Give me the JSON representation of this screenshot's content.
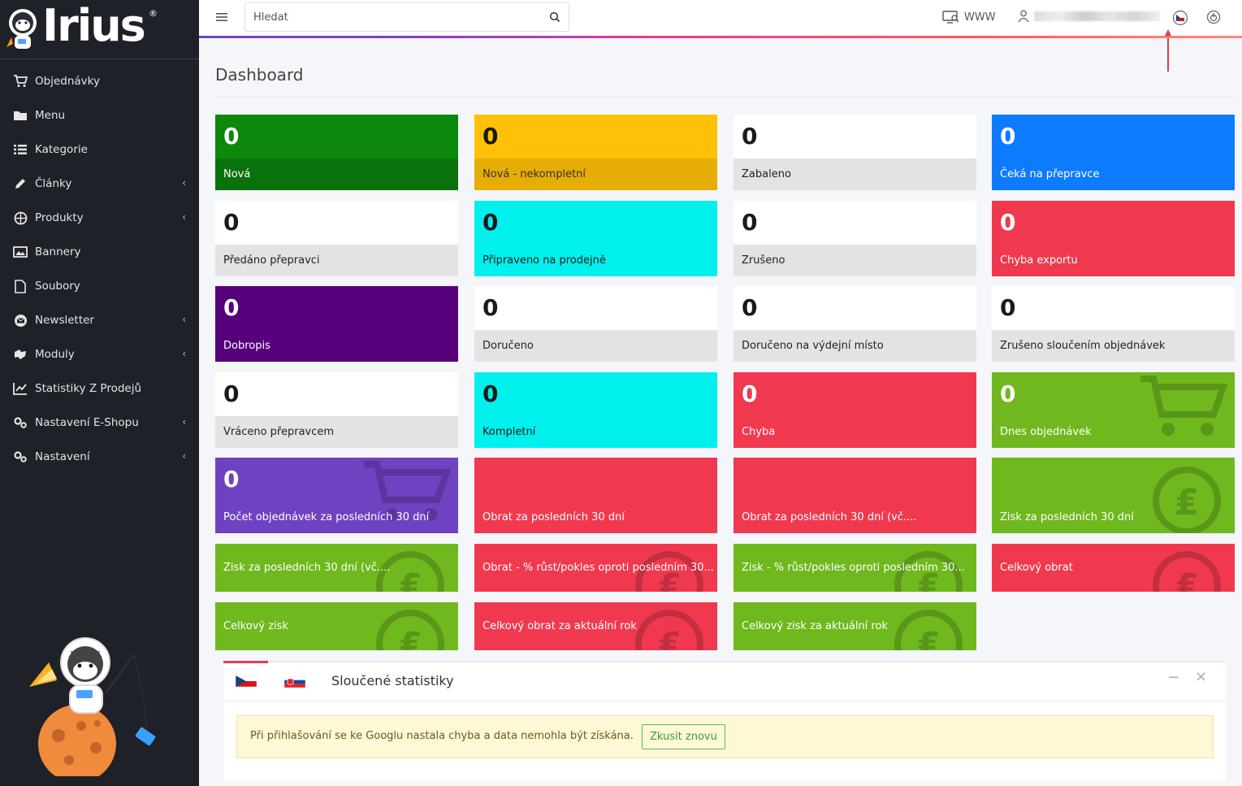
{
  "brand": {
    "logo_text": "Irius",
    "logo_mark": "®"
  },
  "sidebar": {
    "items": [
      {
        "label": "Objednávky",
        "icon": "cart-icon"
      },
      {
        "label": "Menu",
        "icon": "folder-icon"
      },
      {
        "label": "Kategorie",
        "icon": "list-icon"
      },
      {
        "label": "Články",
        "icon": "pencil-icon"
      },
      {
        "label": "Produkty",
        "icon": "basketball-icon"
      },
      {
        "label": "Bannery",
        "icon": "image-icon"
      },
      {
        "label": "Soubory",
        "icon": "file-icon"
      },
      {
        "label": "Newsletter",
        "icon": "envelope-circle-icon"
      },
      {
        "label": "Moduly",
        "icon": "puzzle-icon"
      },
      {
        "label": "Statistiky Z Prodejů",
        "icon": "chart-icon"
      },
      {
        "label": "Nastavení E-Shopu",
        "icon": "gears-icon"
      },
      {
        "label": "Nastavení",
        "icon": "gears-icon"
      }
    ],
    "chevron": "‹"
  },
  "topbar": {
    "search_placeholder": "Hledat",
    "www_label": "WWW"
  },
  "page": {
    "title": "Dashboard"
  },
  "tiles": [
    {
      "value": "0",
      "label": "Nová"
    },
    {
      "value": "0",
      "label": "Nová - nekompletní"
    },
    {
      "value": "0",
      "label": "Zabaleno"
    },
    {
      "value": "0",
      "label": "Čeká na přepravce"
    },
    {
      "value": "0",
      "label": "Předáno přepravci"
    },
    {
      "value": "0",
      "label": "Připraveno na prodejně"
    },
    {
      "value": "0",
      "label": "Zrušeno"
    },
    {
      "value": "0",
      "label": "Chyba exportu"
    },
    {
      "value": "0",
      "label": "Dobropis"
    },
    {
      "value": "0",
      "label": "Doručeno"
    },
    {
      "value": "0",
      "label": "Doručeno na výdejní místo"
    },
    {
      "value": "0",
      "label": "Zrušeno sloučením objednávek"
    },
    {
      "value": "0",
      "label": "Vráceno přepravcem"
    },
    {
      "value": "0",
      "label": "Kompletní"
    },
    {
      "value": "0",
      "label": "Chyba"
    },
    {
      "value": "0",
      "label": "Dnes objednávek"
    },
    {
      "value": "0",
      "label": "Počet objednávek za posledních 30 dní"
    },
    {
      "value": "",
      "label": "Obrat za posledních 30 dní"
    },
    {
      "value": "",
      "label": "Obrat za posledních 30 dní (vč...."
    },
    {
      "value": "",
      "label": "Zisk za posledních 30 dní"
    },
    {
      "value": "",
      "label": "Zisk za posledních 30 dní (vč...."
    },
    {
      "value": "",
      "label": "Obrat - % růst/pokles oproti posledním 30..."
    },
    {
      "value": "",
      "label": "Zisk - % růst/pokles oproti posledním 30..."
    },
    {
      "value": "",
      "label": "Celkový obrat"
    },
    {
      "value": "",
      "label": "Celkový zisk"
    },
    {
      "value": "",
      "label": "Celkový obrat za aktuální rok"
    },
    {
      "value": "",
      "label": "Celkový zisk za aktuální rok"
    }
  ],
  "stats_card": {
    "title": "Sloučené statistiky",
    "tabs": [
      "cz-flag",
      "sk-flag"
    ],
    "minimize": "−",
    "close": "×",
    "alert_text": "Při přihlašování se ke Googlu nastala chyba a data nemohla být získána.",
    "retry_label": "Zkusit znovu"
  },
  "colors": {
    "sidebar_bg": "#1f2129",
    "green": "#0c880c",
    "yellow": "#ffc107",
    "blue": "#0d7bff",
    "cyan": "#00f0ee",
    "red": "#f0394f",
    "purple": "#56007c",
    "violet": "#6f42c1",
    "lime": "#6fb81e"
  }
}
